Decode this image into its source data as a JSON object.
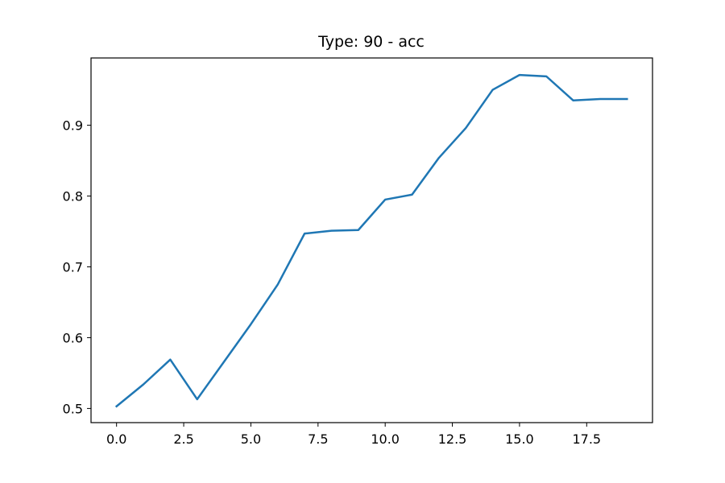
{
  "chart_data": {
    "type": "line",
    "title": "Type: 90 - acc",
    "xlabel": "",
    "ylabel": "",
    "xlim": [
      -0.95,
      19.95
    ],
    "ylim": [
      0.48,
      0.995
    ],
    "x_ticks": [
      0.0,
      2.5,
      5.0,
      7.5,
      10.0,
      12.5,
      15.0,
      17.5
    ],
    "x_tick_labels": [
      "0.0",
      "2.5",
      "5.0",
      "7.5",
      "10.0",
      "12.5",
      "15.0",
      "17.5"
    ],
    "y_ticks": [
      0.5,
      0.6,
      0.7,
      0.8,
      0.9
    ],
    "y_tick_labels": [
      "0.5",
      "0.6",
      "0.7",
      "0.8",
      "0.9"
    ],
    "grid": false,
    "series": [
      {
        "color": "#1f77b4",
        "x": [
          0,
          1,
          2,
          3,
          4,
          5,
          6,
          7,
          8,
          9,
          10,
          11,
          12,
          13,
          14,
          15,
          16,
          17,
          18,
          19
        ],
        "y": [
          0.503,
          0.534,
          0.569,
          0.513,
          0.566,
          0.619,
          0.675,
          0.747,
          0.751,
          0.752,
          0.795,
          0.802,
          0.854,
          0.896,
          0.95,
          0.971,
          0.969,
          0.935,
          0.937,
          0.937
        ]
      }
    ]
  }
}
